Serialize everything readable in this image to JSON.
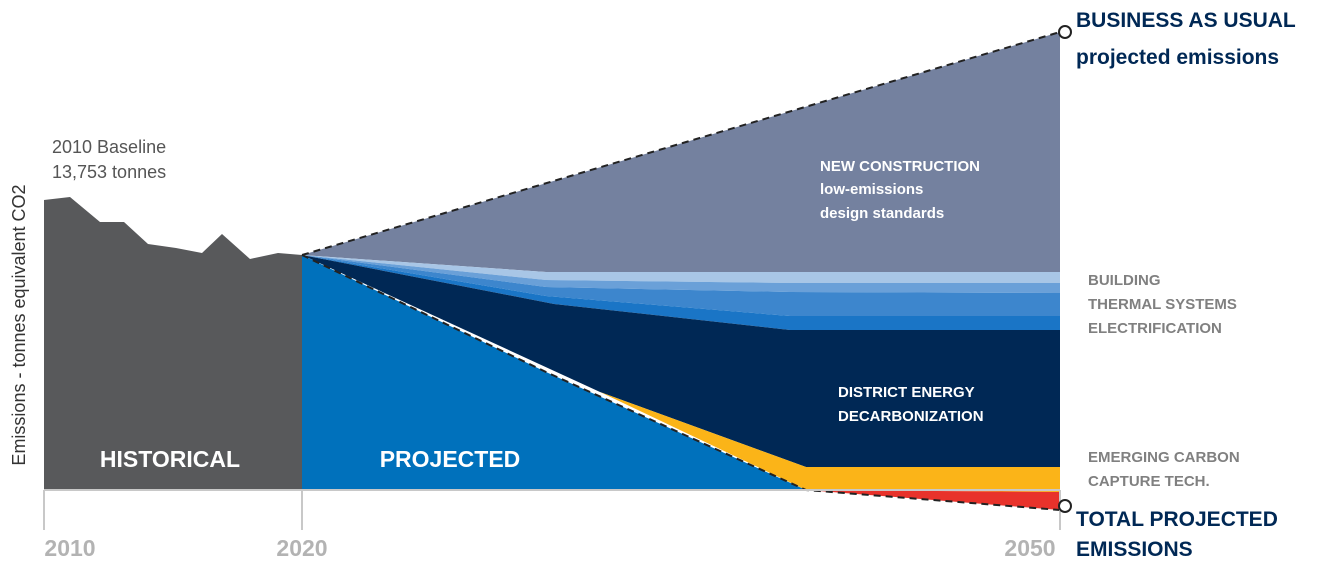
{
  "chart_data": {
    "type": "area",
    "title": "",
    "ylabel": "Emissions - tonnes equivalent  CO2",
    "xlabel": "",
    "x_ticks": [
      "2010",
      "2020",
      "2050"
    ],
    "baseline_note": [
      "2010 Baseline",
      "13,753 tonnes"
    ],
    "colors": {
      "historical": "#58595b",
      "projected": "#0071bc",
      "new_construction": "#74819f",
      "building_thermal_1": "#a8c6e6",
      "building_thermal_2": "#6aa0d8",
      "building_thermal_3": "#3d86cd",
      "building_thermal_4": "#1a75c6",
      "district_energy": "#002855",
      "carbon_capture": "#fbb418",
      "total_projected": "#e8322b"
    },
    "region_labels": {
      "historical": "HISTORICAL",
      "projected": "PROJECTED",
      "new_construction": [
        "NEW CONSTRUCTION",
        "low-emissions",
        "design standards"
      ],
      "district_energy": [
        "DISTRICT ENERGY",
        "DECARBONIZATION"
      ]
    },
    "side_labels": {
      "business_as_usual": [
        "BUSINESS AS USUAL",
        "projected emissions"
      ],
      "building_thermal": [
        "BUILDING",
        "THERMAL SYSTEMS",
        "ELECTRIFICATION"
      ],
      "carbon_capture": [
        "EMERGING CARBON",
        "CAPTURE TECH."
      ],
      "total_projected": [
        "TOTAL PROJECTED",
        "EMISSIONS"
      ]
    }
  }
}
